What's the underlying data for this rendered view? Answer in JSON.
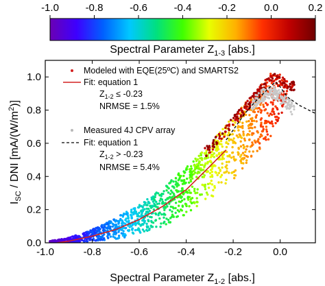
{
  "chart_data": {
    "type": "scatter",
    "colorbar": {
      "label_main": "Spectral Parameter Z",
      "label_sub": "1-3",
      "label_unit": " [abs.]",
      "range": [
        -1.0,
        0.2
      ],
      "ticks": [
        "-1.0",
        "-0.8",
        "-0.6",
        "-0.4",
        "-0.2",
        "0.0",
        "0.2"
      ],
      "colors": [
        "#6a00b4",
        "#3d00ff",
        "#0060ff",
        "#00c8ff",
        "#00e080",
        "#40ff00",
        "#e8ff00",
        "#ffb000",
        "#ff3000",
        "#c00000",
        "#700000"
      ]
    },
    "x_axis": {
      "label_main": "Spectral Parameter Z",
      "label_sub": "1-2",
      "label_unit": " [abs.]",
      "range": [
        -1.0,
        0.15
      ],
      "ticks": [
        "-1.0",
        "-0.8",
        "-0.6",
        "-0.4",
        "-0.2",
        "0.0"
      ]
    },
    "y_axis": {
      "label_part1": "I",
      "label_sub1": "SC",
      "label_part2": " / DNI [mA/(W/m",
      "label_sup": "2",
      "label_part3": ")]",
      "range": [
        0.0,
        1.1
      ],
      "ticks": [
        "0.0",
        "0.2",
        "0.4",
        "0.6",
        "0.8",
        "1.0"
      ]
    },
    "legend": {
      "modeled_label": "Modeled with EQE(25ºC) and SMARTS2",
      "fit1_label": "Fit: equation 1",
      "fit1_cond_main": "Z",
      "fit1_cond_sub": "1-2",
      "fit1_cond_rest": " ≤ -0.23",
      "fit1_nrmse": "NRMSE = 1.5%",
      "measured_label": "Measured 4J CPV array",
      "fit2_label": "Fit: equation 1",
      "fit2_cond_main": "Z",
      "fit2_cond_sub": "1-2",
      "fit2_cond_rest": " > -0.23",
      "fit2_nrmse": "NRMSE = 5.4%"
    },
    "series": [
      {
        "name": "Modeled with EQE(25ºC) and SMARTS2",
        "kind": "scatter-colored",
        "envelope": {
          "x": [
            -0.98,
            -0.9,
            -0.8,
            -0.7,
            -0.6,
            -0.5,
            -0.4,
            -0.3,
            -0.2,
            -0.1,
            -0.04,
            0.0,
            0.03
          ],
          "upper": [
            0.01,
            0.03,
            0.08,
            0.15,
            0.23,
            0.33,
            0.46,
            0.6,
            0.76,
            0.92,
            1.02,
            1.02,
            0.98
          ],
          "lower": [
            0.0,
            0.0,
            0.01,
            0.02,
            0.05,
            0.1,
            0.17,
            0.26,
            0.38,
            0.53,
            0.64,
            0.75,
            0.88
          ]
        }
      },
      {
        "name": "Fit: equation 1 (Z1-2 ≤ -0.23)",
        "kind": "line-solid",
        "color": "#d42020",
        "x": [
          -0.95,
          -0.9,
          -0.8,
          -0.7,
          -0.6,
          -0.5,
          -0.4,
          -0.3,
          -0.23
        ],
        "y": [
          0.0,
          0.01,
          0.04,
          0.08,
          0.14,
          0.22,
          0.32,
          0.46,
          0.56
        ]
      },
      {
        "name": "Measured 4J CPV array",
        "kind": "scatter-gray",
        "color": "#c8c8c8",
        "x": [
          -0.12,
          -0.1,
          -0.08,
          -0.06,
          -0.04,
          -0.02,
          0.0,
          0.02,
          0.04,
          0.06
        ],
        "y": [
          0.84,
          0.86,
          0.88,
          0.9,
          0.91,
          0.9,
          0.88,
          0.86,
          0.83,
          0.8
        ]
      },
      {
        "name": "Fit: equation 1 (Z1-2 > -0.23)",
        "kind": "line-dashed",
        "color": "#000000",
        "x": [
          -0.23,
          -0.15,
          -0.1,
          -0.05,
          -0.02,
          0.0,
          0.03,
          0.08,
          0.15
        ],
        "y": [
          0.62,
          0.78,
          0.86,
          0.93,
          0.97,
          0.94,
          0.88,
          0.83,
          0.78
        ]
      }
    ]
  }
}
